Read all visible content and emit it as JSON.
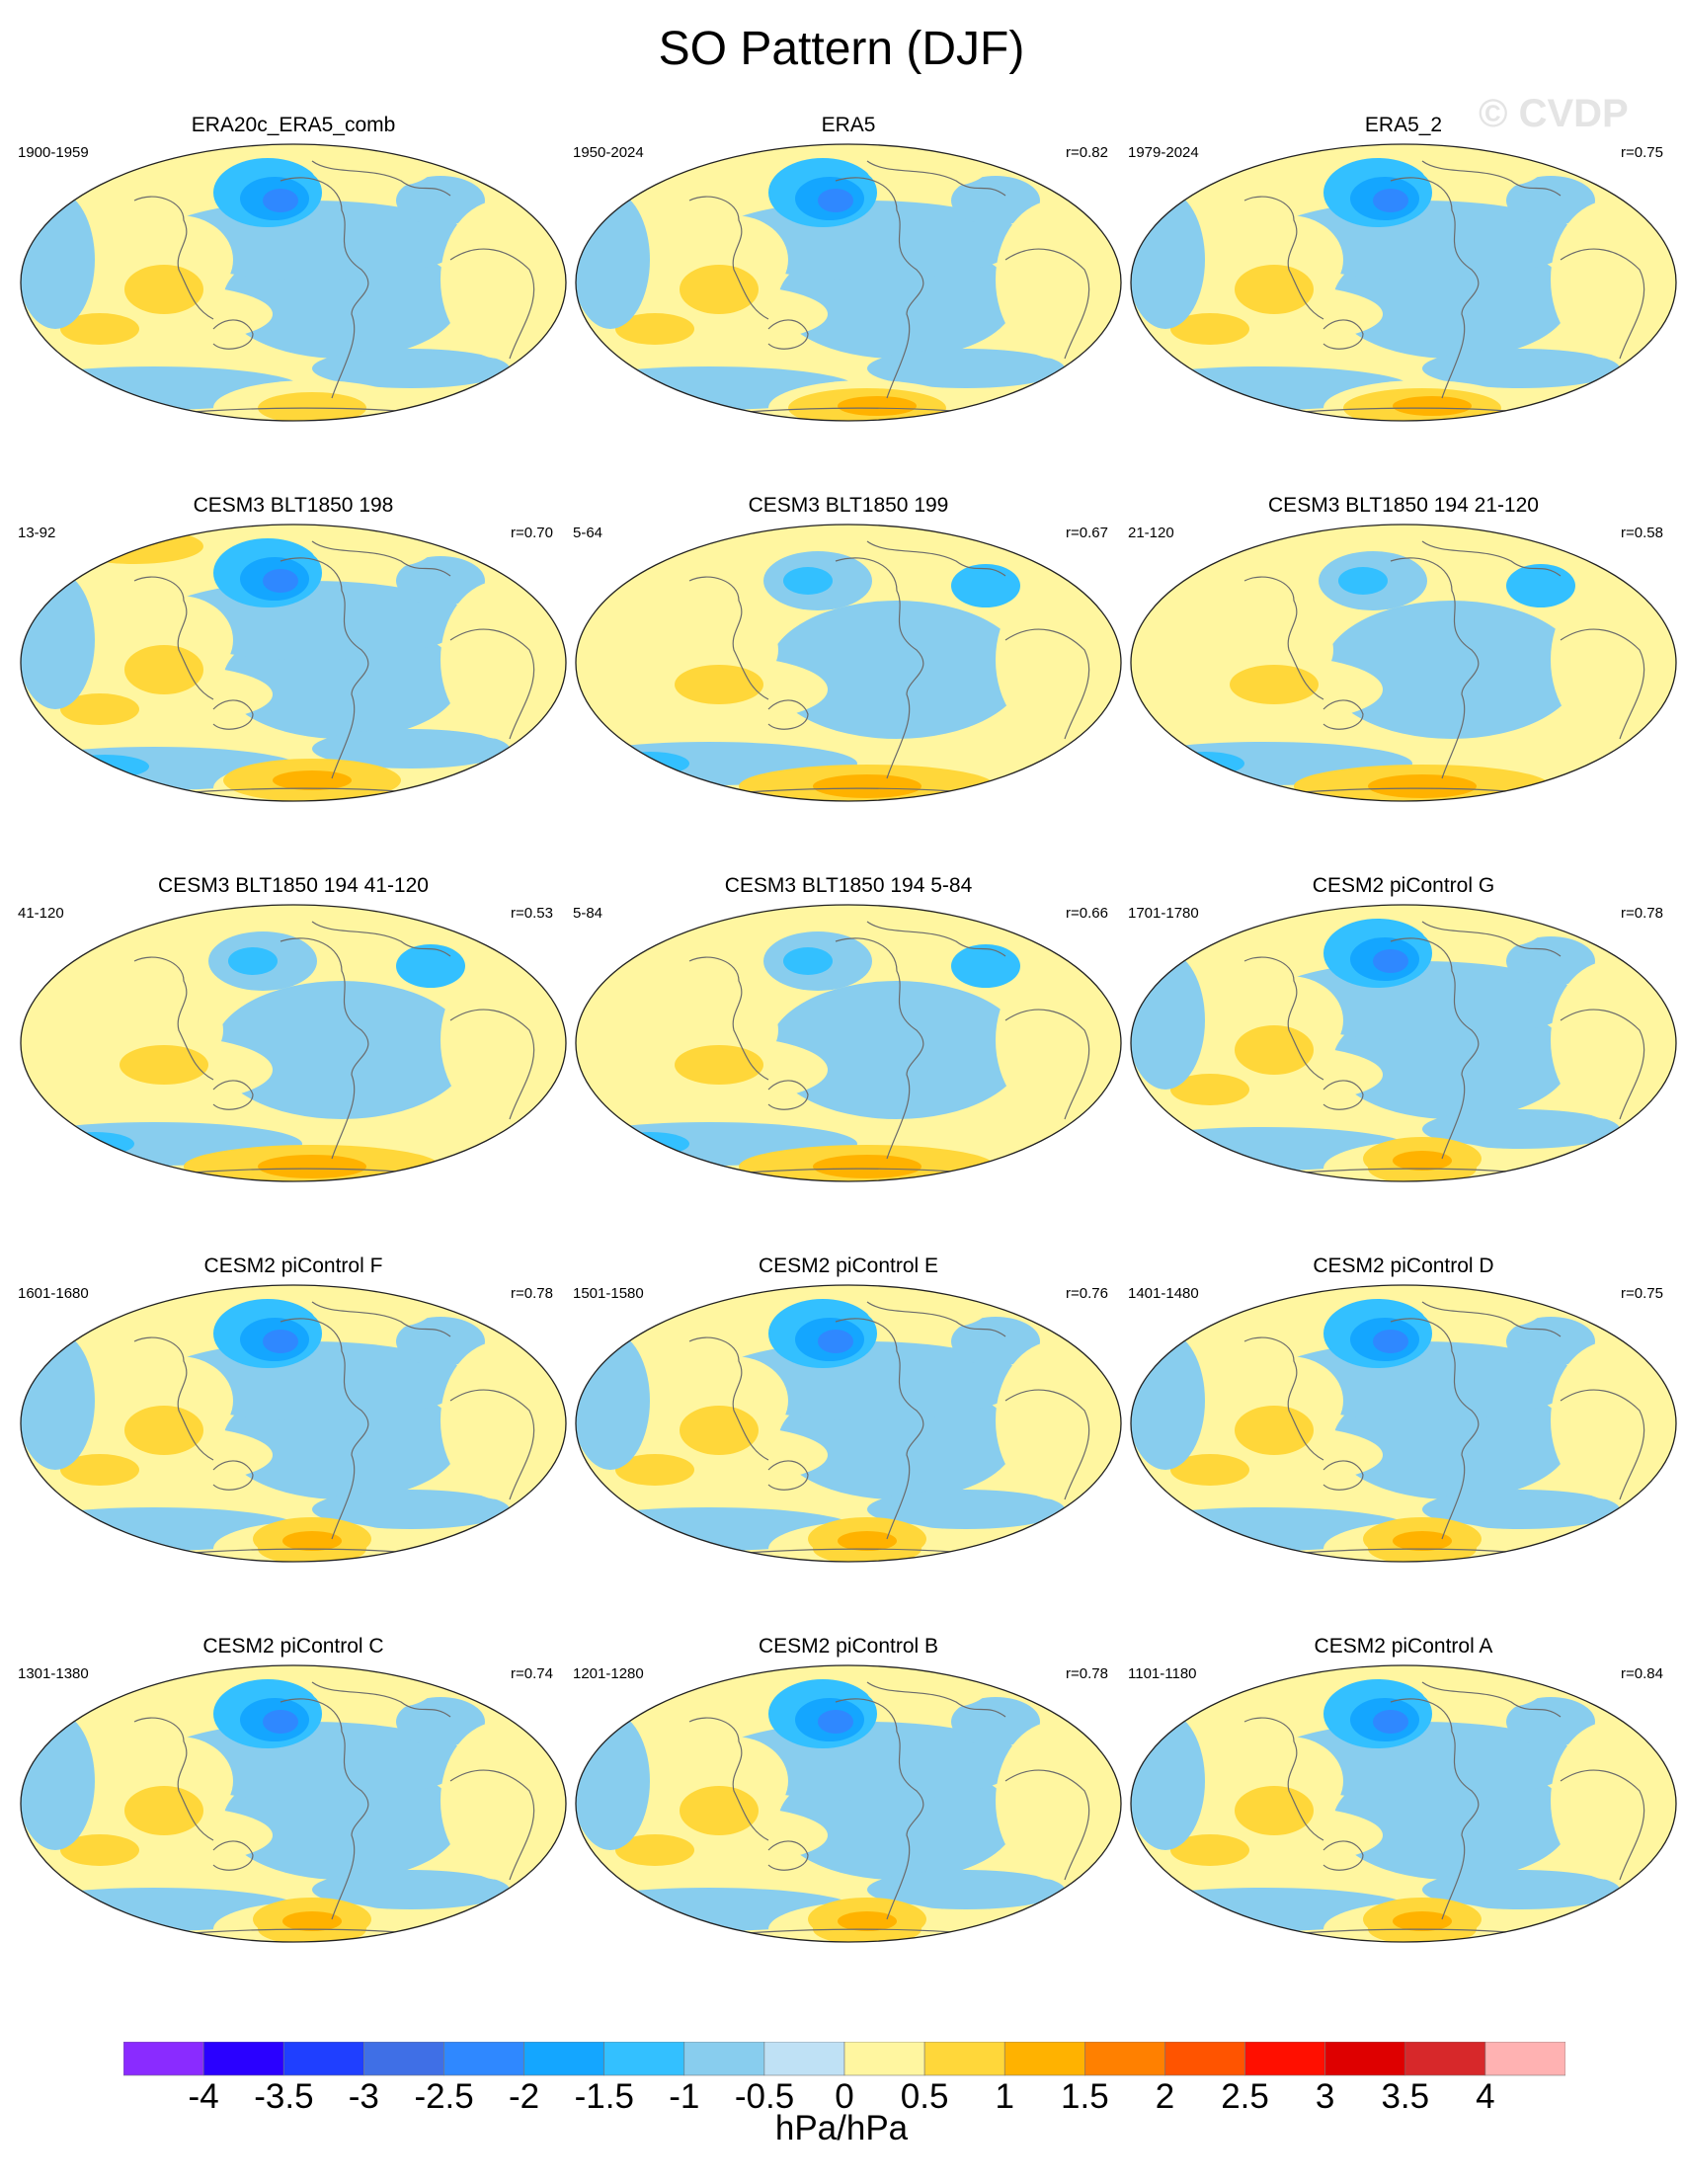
{
  "title": "SO Pattern (DJF)",
  "watermark": "© CVDP",
  "panels": [
    {
      "name": "ERA20c_ERA5_comb",
      "period": "1900-1959",
      "r": "",
      "variant": "obs"
    },
    {
      "name": "ERA5",
      "period": "1950-2024",
      "r": "r=0.82",
      "variant": "era5"
    },
    {
      "name": "ERA5_2",
      "period": "1979-2024",
      "r": "r=0.75",
      "variant": "era5"
    },
    {
      "name": "CESM3 BLT1850 198",
      "period": "13-92",
      "r": "r=0.70",
      "variant": "cesm3"
    },
    {
      "name": "CESM3 BLT1850 199",
      "period": "5-64",
      "r": "r=0.67",
      "variant": "cesm3b"
    },
    {
      "name": "CESM3 BLT1850 194 21-120",
      "period": "21-120",
      "r": "r=0.58",
      "variant": "cesm3b"
    },
    {
      "name": "CESM3 BLT1850 194 41-120",
      "period": "41-120",
      "r": "r=0.53",
      "variant": "cesm3b"
    },
    {
      "name": "CESM3 BLT1850 194 5-84",
      "period": "5-84",
      "r": "r=0.66",
      "variant": "cesm3b"
    },
    {
      "name": "CESM2 piControl G",
      "period": "1701-1780",
      "r": "r=0.78",
      "variant": "cesm2"
    },
    {
      "name": "CESM2 piControl F",
      "period": "1601-1680",
      "r": "r=0.78",
      "variant": "cesm2"
    },
    {
      "name": "CESM2 piControl E",
      "period": "1501-1580",
      "r": "r=0.76",
      "variant": "cesm2"
    },
    {
      "name": "CESM2 piControl D",
      "period": "1401-1480",
      "r": "r=0.75",
      "variant": "cesm2"
    },
    {
      "name": "CESM2 piControl C",
      "period": "1301-1380",
      "r": "r=0.74",
      "variant": "cesm2"
    },
    {
      "name": "CESM2 piControl B",
      "period": "1201-1280",
      "r": "r=0.78",
      "variant": "cesm2"
    },
    {
      "name": "CESM2 piControl A",
      "period": "1101-1180",
      "r": "r=0.84",
      "variant": "cesm2"
    }
  ],
  "colorbar": {
    "units": "hPa/hPa",
    "tick_labels": [
      "-4",
      "-3.5",
      "-3",
      "-2.5",
      "-2",
      "-1.5",
      "-1",
      "-0.5",
      "0",
      "0.5",
      "1",
      "1.5",
      "2",
      "2.5",
      "3",
      "3.5",
      "4"
    ],
    "colors": [
      "#8a2bff",
      "#2a00ff",
      "#1f3fff",
      "#3f6fe6",
      "#2f88ff",
      "#14a6ff",
      "#33c0ff",
      "#88cdee",
      "#bfe1f5",
      "#fff6a0",
      "#ffd73a",
      "#ffb200",
      "#ff8000",
      "#ff5400",
      "#ff0f00",
      "#de0000",
      "#d7282a",
      "#ffb2b2"
    ]
  }
}
